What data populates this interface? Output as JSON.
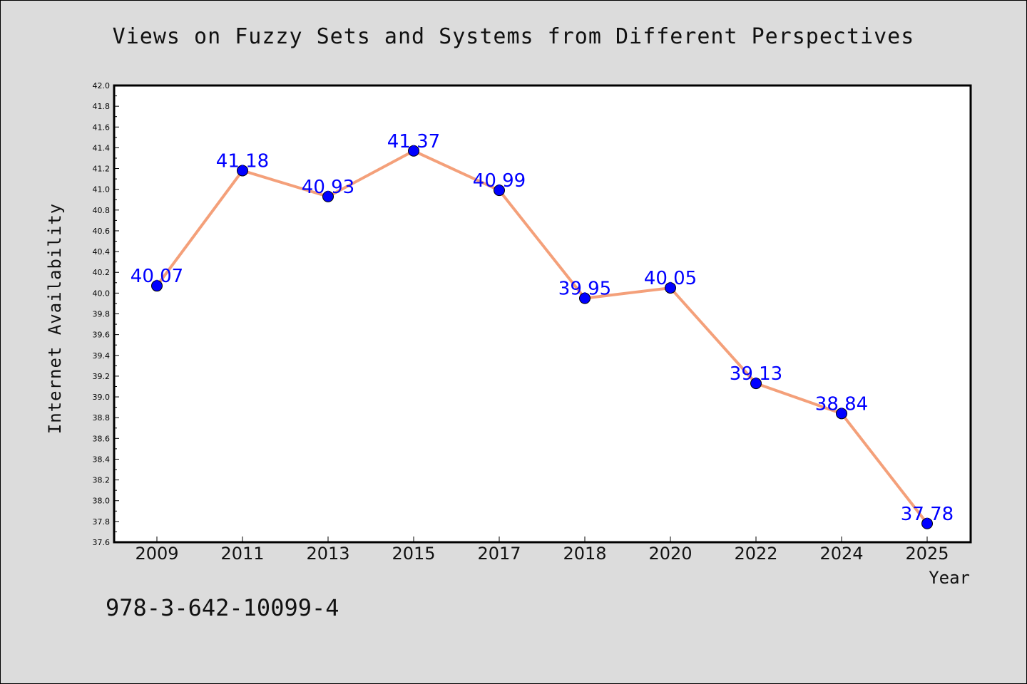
{
  "chart_data": {
    "type": "line",
    "title": "Views on Fuzzy Sets and Systems from Different Perspectives",
    "xlabel": "Year",
    "ylabel": "Internet Availability",
    "categories": [
      "2009",
      "2011",
      "2013",
      "2015",
      "2017",
      "2018",
      "2020",
      "2022",
      "2024",
      "2025"
    ],
    "series": [
      {
        "values": [
          40.07,
          41.18,
          40.93,
          41.37,
          40.99,
          39.95,
          40.05,
          39.13,
          38.84,
          37.78
        ],
        "labels": [
          "40.07",
          "41.18",
          "40.93",
          "41.37",
          "40.99",
          "39.95",
          "40.05",
          "39.13",
          "38.84",
          "37.78"
        ],
        "line_color": "#f4a07a",
        "marker_color": "#0000ff"
      }
    ],
    "ylim": [
      37.6,
      42.0
    ],
    "yticks": [
      "37.6",
      "37.8",
      "38.0",
      "38.2",
      "38.4",
      "38.6",
      "38.8",
      "39.0",
      "39.2",
      "39.4",
      "39.6",
      "39.8",
      "40.0",
      "40.2",
      "40.4",
      "40.6",
      "40.8",
      "41.0",
      "41.2",
      "41.4",
      "41.6",
      "41.8",
      "42.0"
    ],
    "grid": false,
    "legend": "none"
  },
  "footer": {
    "isbn": "978-3-642-10099-4"
  },
  "colors": {
    "background": "#dcdcdc",
    "plot_background": "#ffffff",
    "data_label": "#0000ff"
  }
}
